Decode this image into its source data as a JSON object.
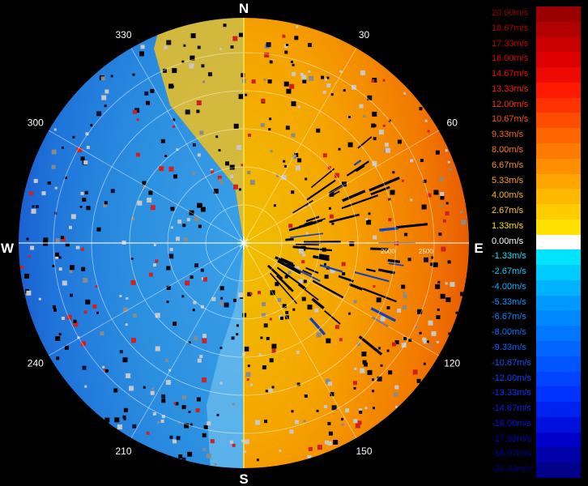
{
  "compass": {
    "north": "N",
    "south": "S",
    "east": "E",
    "west": "W"
  },
  "azimuth_labels": [
    {
      "deg": 30,
      "text": "30"
    },
    {
      "deg": 60,
      "text": "60"
    },
    {
      "deg": 120,
      "text": "120"
    },
    {
      "deg": 150,
      "text": "150"
    },
    {
      "deg": 210,
      "text": "210"
    },
    {
      "deg": 240,
      "text": "240"
    },
    {
      "deg": 300,
      "text": "300"
    },
    {
      "deg": 330,
      "text": "330"
    }
  ],
  "range_labels": [
    "2000",
    "2500"
  ],
  "legend": {
    "entries": [
      {
        "label": "20.00m/s",
        "color": "#9a0000"
      },
      {
        "label": "18.67m/s",
        "color": "#b00000"
      },
      {
        "label": "17.33m/s",
        "color": "#c80000"
      },
      {
        "label": "16.00m/s",
        "color": "#dc0000"
      },
      {
        "label": "14.67m/s",
        "color": "#ee0a00"
      },
      {
        "label": "13.33m/s",
        "color": "#ff1a00"
      },
      {
        "label": "12.00m/s",
        "color": "#ff3300"
      },
      {
        "label": "10.67m/s",
        "color": "#ff4d00"
      },
      {
        "label": "9.33m/s",
        "color": "#ff6600"
      },
      {
        "label": "8.00m/s",
        "color": "#ff7a00"
      },
      {
        "label": "6.67m/s",
        "color": "#ff8f00"
      },
      {
        "label": "5.33m/s",
        "color": "#ffa500"
      },
      {
        "label": "4.00m/s",
        "color": "#ffb800"
      },
      {
        "label": "2.67m/s",
        "color": "#ffcc00"
      },
      {
        "label": "1.33m/s",
        "color": "#ffe000"
      },
      {
        "label": "0.00m/s",
        "color": "#ffffff"
      },
      {
        "label": "-1.33m/s",
        "color": "#00e5ff"
      },
      {
        "label": "-2.67m/s",
        "color": "#00ccff"
      },
      {
        "label": "-4.00m/s",
        "color": "#00b3ff"
      },
      {
        "label": "-5.33m/s",
        "color": "#0099ff"
      },
      {
        "label": "-6.67m/s",
        "color": "#0088ff"
      },
      {
        "label": "-8.00m/s",
        "color": "#0077ff"
      },
      {
        "label": "-9.33m/s",
        "color": "#0066ff"
      },
      {
        "label": "-10.67m/s",
        "color": "#0055ff"
      },
      {
        "label": "-12.00m/s",
        "color": "#0044ff"
      },
      {
        "label": "-13.33m/s",
        "color": "#0033ff"
      },
      {
        "label": "-14.67m/s",
        "color": "#0022ee"
      },
      {
        "label": "-16.00m/s",
        "color": "#0011dd"
      },
      {
        "label": "-17.33m/s",
        "color": "#0000c8"
      },
      {
        "label": "-18.67m/s",
        "color": "#0000a8"
      },
      {
        "label": "-20.00m/s",
        "color": "#00008a"
      }
    ]
  }
}
